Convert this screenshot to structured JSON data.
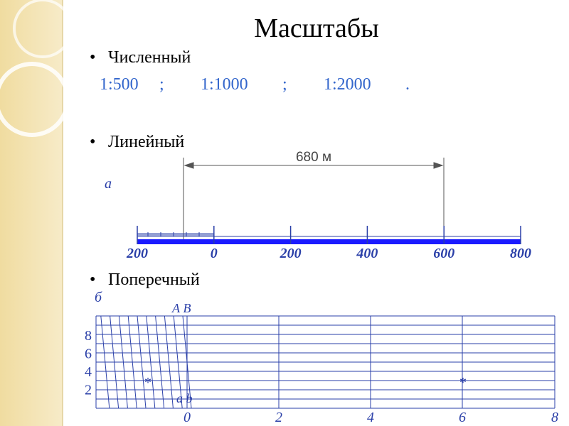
{
  "title": "Масштабы",
  "bullets": [
    "Численный",
    "Линейный",
    "Поперечный"
  ],
  "numeric": {
    "items": [
      "1:500",
      ";",
      "1:1000",
      ";",
      "1:2000",
      "."
    ]
  },
  "linear": {
    "letter": "а",
    "dimension": "680 м",
    "labels": [
      "200",
      "0",
      "200",
      "400",
      "600",
      "800"
    ]
  },
  "transverse": {
    "letter": "б",
    "top_points": "А В",
    "bottom_points": "а b",
    "left_labels": [
      "8",
      "6",
      "4",
      "2"
    ],
    "bottom_labels": [
      "0",
      "2",
      "4",
      "6",
      "8"
    ],
    "marks": [
      "*",
      "*"
    ]
  }
}
